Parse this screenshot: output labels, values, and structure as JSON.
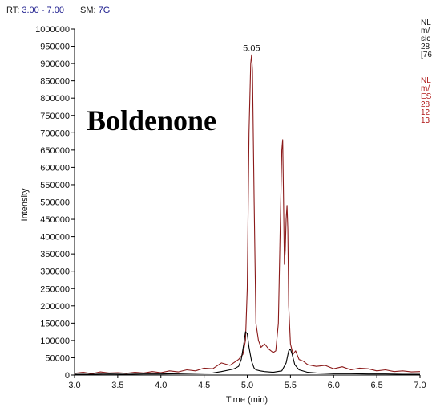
{
  "header": {
    "rt_label": "RT:",
    "rt_value": "3.00 - 7.00",
    "sm_label": "SM:",
    "sm_value": "7G"
  },
  "side_info": {
    "black_lines": [
      "NL",
      "m/",
      "sic",
      "28",
      "[76"
    ],
    "red_lines": [
      "NL",
      "m/",
      "ES",
      "28",
      "12",
      "13"
    ]
  },
  "colors": {
    "trace_red": "#8b1a1a",
    "trace_black": "#000000",
    "header_value": "#1a1a8c"
  },
  "chart_data": {
    "type": "line",
    "title": "",
    "xlabel": "Time (min)",
    "ylabel": "Intensity",
    "xlim": [
      3.0,
      7.0
    ],
    "ylim": [
      0,
      1000000
    ],
    "x_ticks": [
      3.0,
      3.5,
      4.0,
      4.5,
      5.0,
      5.5,
      6.0,
      6.5,
      7.0
    ],
    "x_tick_labels": [
      "3.0",
      "3.5",
      "4.0",
      "4.5",
      "5.0",
      "5.5",
      "6.0",
      "6.5",
      "7.0"
    ],
    "y_ticks": [
      0,
      50000,
      100000,
      150000,
      200000,
      250000,
      300000,
      350000,
      400000,
      450000,
      500000,
      550000,
      600000,
      650000,
      700000,
      750000,
      800000,
      850000,
      900000,
      950000,
      1000000
    ],
    "y_tick_labels": [
      "0",
      "50000",
      "100000",
      "150000",
      "200000",
      "250000",
      "300000",
      "350000",
      "400000",
      "450000",
      "500000",
      "550000",
      "600000",
      "650000",
      "700000",
      "750000",
      "800000",
      "850000",
      "900000",
      "950000",
      "1000000"
    ],
    "annotations": [
      {
        "text": "Boldenone"
      },
      {
        "text": "5.05",
        "x": 5.05,
        "y": 925000
      }
    ],
    "series": [
      {
        "color": "#8b1a1a",
        "x": [
          3.0,
          3.1,
          3.2,
          3.3,
          3.4,
          3.5,
          3.6,
          3.7,
          3.8,
          3.9,
          4.0,
          4.1,
          4.2,
          4.3,
          4.4,
          4.5,
          4.6,
          4.7,
          4.8,
          4.9,
          4.95,
          4.98,
          5.0,
          5.02,
          5.04,
          5.05,
          5.06,
          5.08,
          5.1,
          5.13,
          5.16,
          5.2,
          5.25,
          5.3,
          5.33,
          5.36,
          5.38,
          5.4,
          5.41,
          5.42,
          5.43,
          5.44,
          5.45,
          5.46,
          5.47,
          5.48,
          5.5,
          5.53,
          5.56,
          5.6,
          5.65,
          5.7,
          5.8,
          5.9,
          6.0,
          6.1,
          6.2,
          6.3,
          6.4,
          6.5,
          6.6,
          6.7,
          6.8,
          6.9,
          7.0
        ],
        "y": [
          5000,
          8000,
          4000,
          9000,
          6000,
          7000,
          5000,
          8000,
          6000,
          10000,
          7000,
          12000,
          9000,
          15000,
          12000,
          20000,
          18000,
          35000,
          28000,
          45000,
          60000,
          100000,
          250000,
          700000,
          900000,
          925000,
          880000,
          500000,
          150000,
          100000,
          80000,
          90000,
          75000,
          65000,
          70000,
          150000,
          400000,
          650000,
          680000,
          500000,
          320000,
          360000,
          450000,
          490000,
          420000,
          200000,
          90000,
          60000,
          70000,
          45000,
          40000,
          30000,
          25000,
          28000,
          18000,
          24000,
          15000,
          20000,
          18000,
          12000,
          15000,
          10000,
          12000,
          9000,
          10000
        ]
      },
      {
        "color": "#000000",
        "x": [
          3.0,
          3.2,
          3.4,
          3.6,
          3.8,
          4.0,
          4.2,
          4.4,
          4.6,
          4.7,
          4.8,
          4.85,
          4.9,
          4.93,
          4.96,
          4.98,
          5.0,
          5.02,
          5.05,
          5.08,
          5.1,
          5.15,
          5.2,
          5.3,
          5.4,
          5.45,
          5.48,
          5.5,
          5.52,
          5.55,
          5.6,
          5.7,
          5.8,
          5.9,
          6.0,
          6.2,
          6.4,
          6.6,
          6.8,
          7.0
        ],
        "y": [
          2000,
          2000,
          3000,
          2000,
          3000,
          3000,
          4000,
          5000,
          6000,
          10000,
          15000,
          18000,
          25000,
          45000,
          90000,
          125000,
          120000,
          80000,
          40000,
          20000,
          15000,
          12000,
          10000,
          8000,
          12000,
          35000,
          70000,
          75000,
          60000,
          30000,
          15000,
          8000,
          6000,
          5000,
          4000,
          4000,
          3000,
          3000,
          2000,
          2000
        ]
      }
    ]
  }
}
